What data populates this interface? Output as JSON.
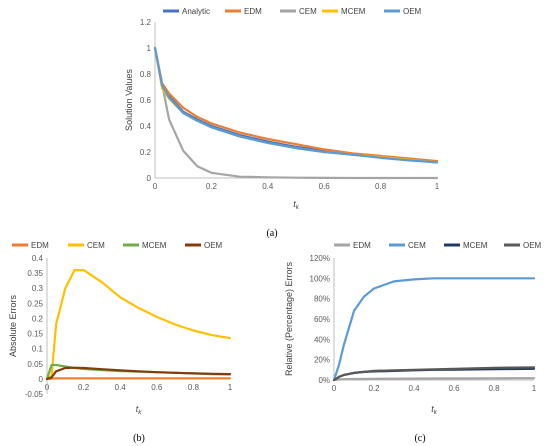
{
  "chart_data": [
    {
      "type": "line",
      "panel_label": "(a)",
      "xlabel": "t",
      "xlabel_sub": "k",
      "ylabel": "Solution Values",
      "xlim": [
        0,
        1
      ],
      "ylim": [
        0,
        1.2
      ],
      "xticks": [
        "0",
        "0.2",
        "0.4",
        "0.6",
        "0.8",
        "1"
      ],
      "yticks": [
        "0",
        "0.2",
        "0.4",
        "0.6",
        "0.8",
        "1",
        "1.2"
      ],
      "legend_position": "top",
      "x": [
        0,
        0.025,
        0.05,
        0.1,
        0.15,
        0.2,
        0.3,
        0.4,
        0.5,
        0.6,
        0.7,
        0.8,
        0.9,
        1.0
      ],
      "series": [
        {
          "name": "Analytic",
          "color": "#4472c4",
          "values": [
            1,
            0.71,
            0.63,
            0.51,
            0.45,
            0.4,
            0.33,
            0.28,
            0.24,
            0.21,
            0.18,
            0.16,
            0.14,
            0.12
          ]
        },
        {
          "name": "EDM",
          "color": "#ed7d31",
          "values": [
            1,
            0.73,
            0.65,
            0.54,
            0.47,
            0.42,
            0.35,
            0.3,
            0.26,
            0.22,
            0.19,
            0.17,
            0.15,
            0.13
          ]
        },
        {
          "name": "CEM",
          "color": "#a5a5a5",
          "values": [
            1,
            0.72,
            0.45,
            0.21,
            0.09,
            0.04,
            0.01,
            0.005,
            0.002,
            0.001,
            0,
            0,
            0,
            0
          ]
        },
        {
          "name": "MCEM",
          "color": "#ffc000",
          "values": [
            1,
            0.69,
            0.61,
            0.5,
            0.44,
            0.39,
            0.32,
            0.27,
            0.23,
            0.2,
            0.18,
            0.16,
            0.14,
            0.12
          ]
        },
        {
          "name": "OEM",
          "color": "#5b9bd5",
          "values": [
            1,
            0.71,
            0.62,
            0.5,
            0.44,
            0.39,
            0.32,
            0.27,
            0.23,
            0.2,
            0.18,
            0.155,
            0.135,
            0.12
          ]
        }
      ]
    },
    {
      "type": "line",
      "panel_label": "(b)",
      "xlabel": "t",
      "xlabel_sub": "k",
      "ylabel": "Absolute Errors",
      "xlim": [
        0,
        1
      ],
      "ylim": [
        -0.05,
        0.4
      ],
      "xticks": [
        "0",
        "0.2",
        "0.4",
        "0.6",
        "0.8",
        "1"
      ],
      "yticks": [
        "-0.05",
        "0",
        "0.05",
        "0.1",
        "0.15",
        "0.2",
        "0.25",
        "0.3",
        "0.35",
        "0.4"
      ],
      "legend_position": "top",
      "x": [
        0,
        0.025,
        0.05,
        0.1,
        0.15,
        0.2,
        0.3,
        0.4,
        0.5,
        0.6,
        0.7,
        0.8,
        0.9,
        1.0
      ],
      "series": [
        {
          "name": "EDM",
          "color": "#ed7d31",
          "values": [
            0,
            0.001,
            0.002,
            0.002,
            0.002,
            0.002,
            0.002,
            0.002,
            0.002,
            0.002,
            0.002,
            0.002,
            0.002,
            0.002
          ]
        },
        {
          "name": "CEM",
          "color": "#ffc000",
          "values": [
            0,
            0.01,
            0.18,
            0.3,
            0.36,
            0.36,
            0.32,
            0.27,
            0.235,
            0.205,
            0.18,
            0.16,
            0.145,
            0.135
          ]
        },
        {
          "name": "MCEM",
          "color": "#70ad47",
          "values": [
            0,
            0.046,
            0.046,
            0.041,
            0.036,
            0.033,
            0.029,
            0.026,
            0.024,
            0.022,
            0.02,
            0.018,
            0.016,
            0.015
          ]
        },
        {
          "name": "OEM",
          "color": "#843c0c",
          "values": [
            0,
            0.005,
            0.025,
            0.036,
            0.037,
            0.036,
            0.032,
            0.028,
            0.025,
            0.022,
            0.02,
            0.018,
            0.017,
            0.016
          ]
        }
      ]
    },
    {
      "type": "line",
      "panel_label": "(c)",
      "xlabel": "t",
      "xlabel_sub": "k",
      "ylabel": "Relative (Percentage) Errors",
      "xlim": [
        0,
        1
      ],
      "ylim": [
        0,
        120
      ],
      "xticks": [
        "0",
        "0.2",
        "0.4",
        "0.6",
        "0.8",
        "1"
      ],
      "yticks": [
        "0%",
        "20%",
        "40%",
        "60%",
        "80%",
        "100%",
        "120%"
      ],
      "legend_position": "top",
      "x": [
        0,
        0.025,
        0.05,
        0.1,
        0.15,
        0.2,
        0.3,
        0.4,
        0.5,
        0.6,
        0.7,
        0.8,
        0.9,
        1.0
      ],
      "series": [
        {
          "name": "EDM",
          "color": "#a5a5a5",
          "values": [
            0,
            0.5,
            0.8,
            1,
            1,
            1.2,
            1.3,
            1.4,
            1.5,
            1.6,
            1.6,
            1.7,
            1.8,
            1.8
          ]
        },
        {
          "name": "CEM",
          "color": "#5b9bd5",
          "values": [
            0,
            15,
            35,
            68,
            82,
            90,
            97,
            99,
            100,
            100,
            100,
            100,
            100,
            100
          ]
        },
        {
          "name": "MCEM",
          "color": "#203864",
          "values": [
            0,
            3,
            5,
            7,
            8,
            8.5,
            9,
            9.5,
            10,
            10.2,
            10.4,
            10.6,
            10.8,
            11
          ]
        },
        {
          "name": "OEM",
          "color": "#595959",
          "values": [
            0,
            3,
            5,
            7,
            8,
            9,
            9.5,
            10,
            10.5,
            11,
            11.5,
            12,
            12.2,
            12.5
          ]
        }
      ]
    }
  ]
}
